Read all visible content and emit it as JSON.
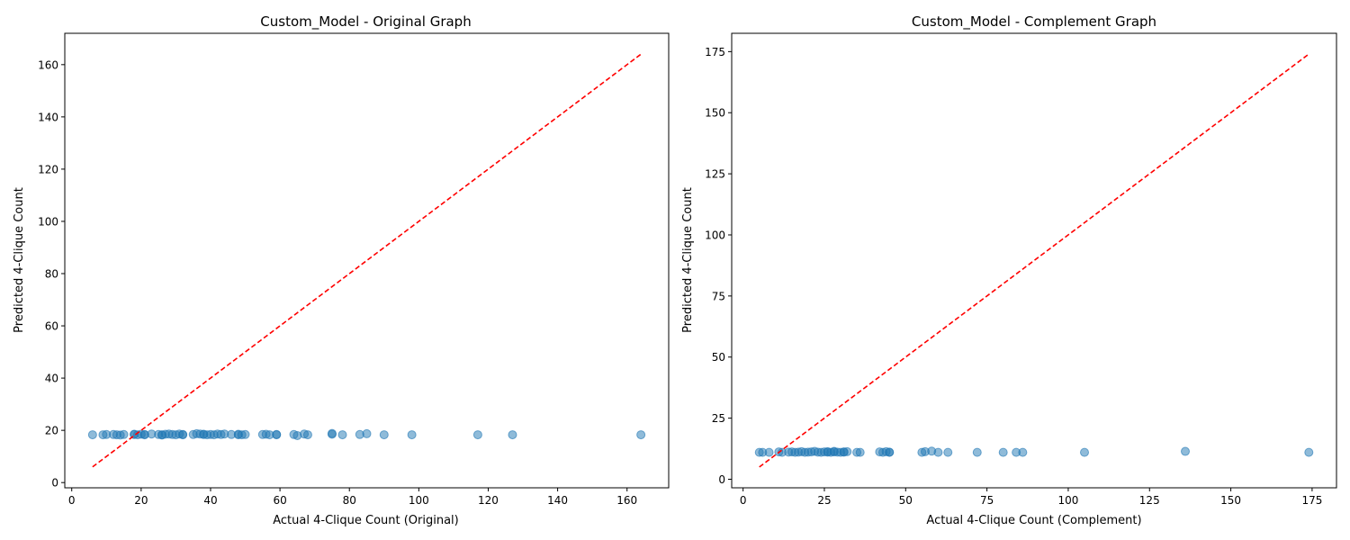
{
  "chart_data": [
    {
      "type": "scatter",
      "title": "Custom_Model - Original Graph",
      "xlabel": "Actual 4-Clique Count (Original)",
      "ylabel": "Predicted 4-Clique Count",
      "xlim": [
        -2,
        172
      ],
      "ylim": [
        -2,
        172
      ],
      "xticks": [
        0,
        20,
        40,
        60,
        80,
        100,
        120,
        140,
        160
      ],
      "yticks": [
        0,
        20,
        40,
        60,
        80,
        100,
        120,
        140,
        160
      ],
      "reference_line": {
        "x": [
          6,
          164
        ],
        "y": [
          6,
          164
        ],
        "style": "red dashed"
      },
      "grid": false,
      "series": [
        {
          "color": "#1f77b4",
          "x": [
            6,
            9,
            10,
            12,
            13,
            14,
            15,
            18,
            18,
            19,
            20,
            21,
            21,
            23,
            25,
            26,
            26,
            27,
            28,
            29,
            30,
            31,
            32,
            32,
            35,
            36,
            37,
            38,
            38,
            39,
            40,
            41,
            42,
            43,
            44,
            46,
            48,
            48,
            49,
            50,
            55,
            56,
            57,
            59,
            59,
            64,
            65,
            67,
            68,
            75,
            75,
            78,
            83,
            85,
            90,
            98,
            117,
            127,
            164
          ],
          "y": [
            18.3,
            18.3,
            18.4,
            18.4,
            18.3,
            18.2,
            18.4,
            18.5,
            18.4,
            18.3,
            18.5,
            18.4,
            18.3,
            18.6,
            18.4,
            18.3,
            18.2,
            18.5,
            18.6,
            18.4,
            18.3,
            18.6,
            18.4,
            18.3,
            18.4,
            18.7,
            18.6,
            18.5,
            18.4,
            18.3,
            18.4,
            18.3,
            18.6,
            18.4,
            18.6,
            18.4,
            18.5,
            18.3,
            18.3,
            18.4,
            18.4,
            18.5,
            18.3,
            18.4,
            18.3,
            18.4,
            18.0,
            18.6,
            18.3,
            18.5,
            18.8,
            18.3,
            18.4,
            18.7,
            18.3,
            18.3,
            18.3,
            18.3,
            18.3
          ]
        }
      ]
    },
    {
      "type": "scatter",
      "title": "Custom_Model - Complement Graph",
      "xlabel": "Actual 4-Clique Count (Complement)",
      "ylabel": "Predicted 4-Clique Count",
      "xlim": [
        -3.5,
        182.5
      ],
      "ylim": [
        -3.5,
        182.5
      ],
      "xticks": [
        0,
        25,
        50,
        75,
        100,
        125,
        150,
        175
      ],
      "yticks": [
        0,
        25,
        50,
        75,
        100,
        125,
        150,
        175
      ],
      "reference_line": {
        "x": [
          5,
          174
        ],
        "y": [
          5,
          174
        ],
        "style": "red dashed"
      },
      "grid": false,
      "series": [
        {
          "color": "#1f77b4",
          "x": [
            5,
            6,
            8,
            11,
            12,
            14,
            15,
            16,
            17,
            18,
            19,
            20,
            21,
            22,
            23,
            24,
            25,
            26,
            26,
            27,
            28,
            28,
            29,
            30,
            31,
            31,
            32,
            35,
            36,
            42,
            43,
            44,
            45,
            45,
            55,
            56,
            58,
            60,
            63,
            72,
            80,
            84,
            86,
            105,
            136,
            174
          ],
          "y": [
            11.0,
            11.0,
            11.0,
            11.2,
            11.0,
            11.1,
            11.2,
            11.0,
            11.1,
            11.3,
            11.0,
            11.1,
            11.2,
            11.4,
            11.1,
            11.0,
            11.2,
            11.1,
            11.3,
            11.0,
            11.2,
            11.4,
            11.1,
            11.0,
            11.2,
            11.1,
            11.3,
            11.0,
            11.0,
            11.2,
            11.0,
            11.3,
            11.0,
            11.1,
            11.0,
            11.3,
            11.5,
            11.0,
            11.0,
            11.0,
            11.0,
            11.0,
            11.0,
            11.0,
            11.4,
            11.0
          ]
        }
      ]
    }
  ]
}
